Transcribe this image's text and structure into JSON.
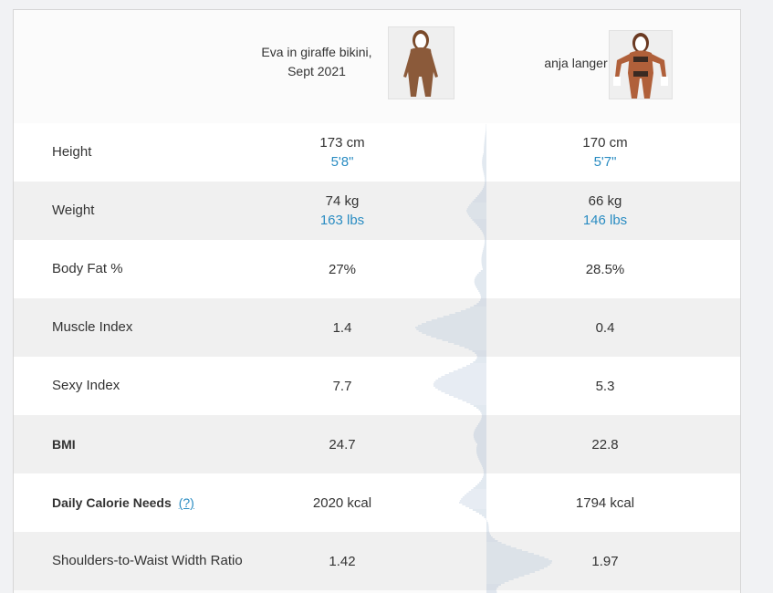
{
  "people": [
    {
      "name_line1": "Eva in giraffe bikini,",
      "name_line2": "Sept 2021"
    },
    {
      "name_line1": "anja langer",
      "name_line2": ""
    }
  ],
  "rows": [
    {
      "label": "Height",
      "bold": false,
      "v1": "173 cm",
      "v1_sub": "5'8\"",
      "v2": "170 cm",
      "v2_sub": "5'7\""
    },
    {
      "label": "Weight",
      "bold": false,
      "v1": "74 kg",
      "v1_sub": "163 lbs",
      "v2": "66 kg",
      "v2_sub": "146 lbs"
    },
    {
      "label": "Body Fat %",
      "bold": false,
      "v1": "27%",
      "v1_sub": "",
      "v2": "28.5%",
      "v2_sub": ""
    },
    {
      "label": "Muscle Index",
      "bold": false,
      "v1": "1.4",
      "v1_sub": "",
      "v2": "0.4",
      "v2_sub": ""
    },
    {
      "label": "Sexy Index",
      "bold": false,
      "v1": "7.7",
      "v1_sub": "",
      "v2": "5.3",
      "v2_sub": ""
    },
    {
      "label": "BMI",
      "bold": true,
      "v1": "24.7",
      "v1_sub": "",
      "v2": "22.8",
      "v2_sub": ""
    },
    {
      "label": "Daily Calorie Needs",
      "bold": true,
      "help": "(?)",
      "v1": "2020 kcal",
      "v1_sub": "",
      "v2": "1794 kcal",
      "v2_sub": ""
    },
    {
      "label": "Shoulders-to-Waist Width Ratio",
      "bold": false,
      "v1": "1.42",
      "v1_sub": "",
      "v2": "1.97",
      "v2_sub": ""
    }
  ],
  "colors": {
    "link": "#2a8cc2",
    "viz_line": "#9fb6cf"
  },
  "icons": {
    "photo1": "person-photo",
    "photo2": "person-photo"
  }
}
